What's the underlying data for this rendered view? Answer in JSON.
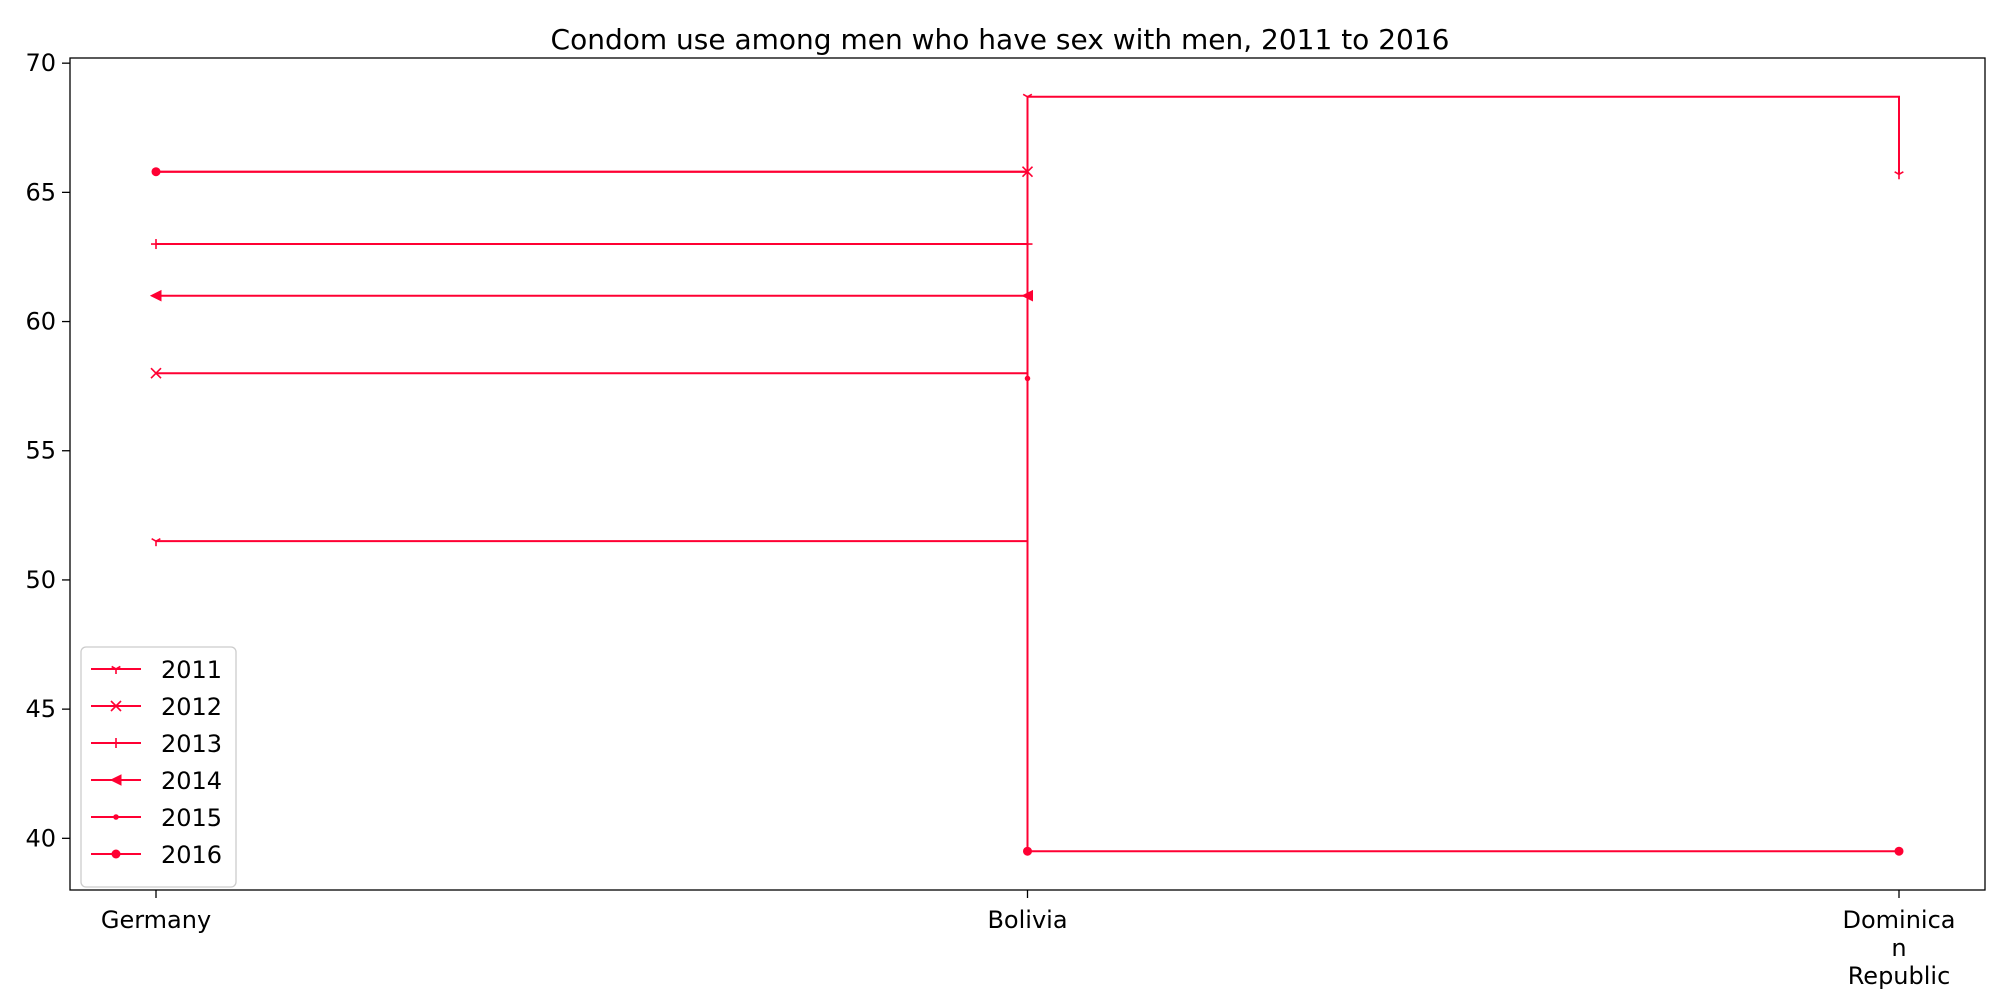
{
  "chart_data": {
    "type": "line",
    "title": "Condom use among men who have sex with men, 2011 to 2016",
    "xlabel": "",
    "ylabel": "",
    "categories": [
      "Germany",
      "Bolivia",
      "Dominican Republic"
    ],
    "category_lines": [
      [
        "Germany"
      ],
      [
        "Bolivia"
      ],
      [
        "Dominica",
        "n",
        "Republic"
      ]
    ],
    "ylim": [
      38,
      70.2
    ],
    "yticks": [
      40,
      45,
      50,
      55,
      60,
      65,
      70
    ],
    "step": "post",
    "grid": false,
    "legend_position": "lower-left",
    "series": [
      {
        "name": "2011",
        "marker": "tri-down",
        "values": [
          51.5,
          68.7,
          65.7
        ]
      },
      {
        "name": "2012",
        "marker": "x",
        "values": [
          58.0,
          65.8,
          null
        ]
      },
      {
        "name": "2013",
        "marker": "plus",
        "values": [
          63.0,
          63.0,
          null
        ]
      },
      {
        "name": "2014",
        "marker": "triangle-left",
        "values": [
          61.0,
          61.0,
          null
        ]
      },
      {
        "name": "2015",
        "marker": "point",
        "values": [
          65.8,
          57.8,
          null
        ]
      },
      {
        "name": "2016",
        "marker": "circle",
        "values": [
          65.8,
          39.5,
          39.5
        ]
      }
    ]
  },
  "colors": {
    "series": "#ff0033"
  }
}
